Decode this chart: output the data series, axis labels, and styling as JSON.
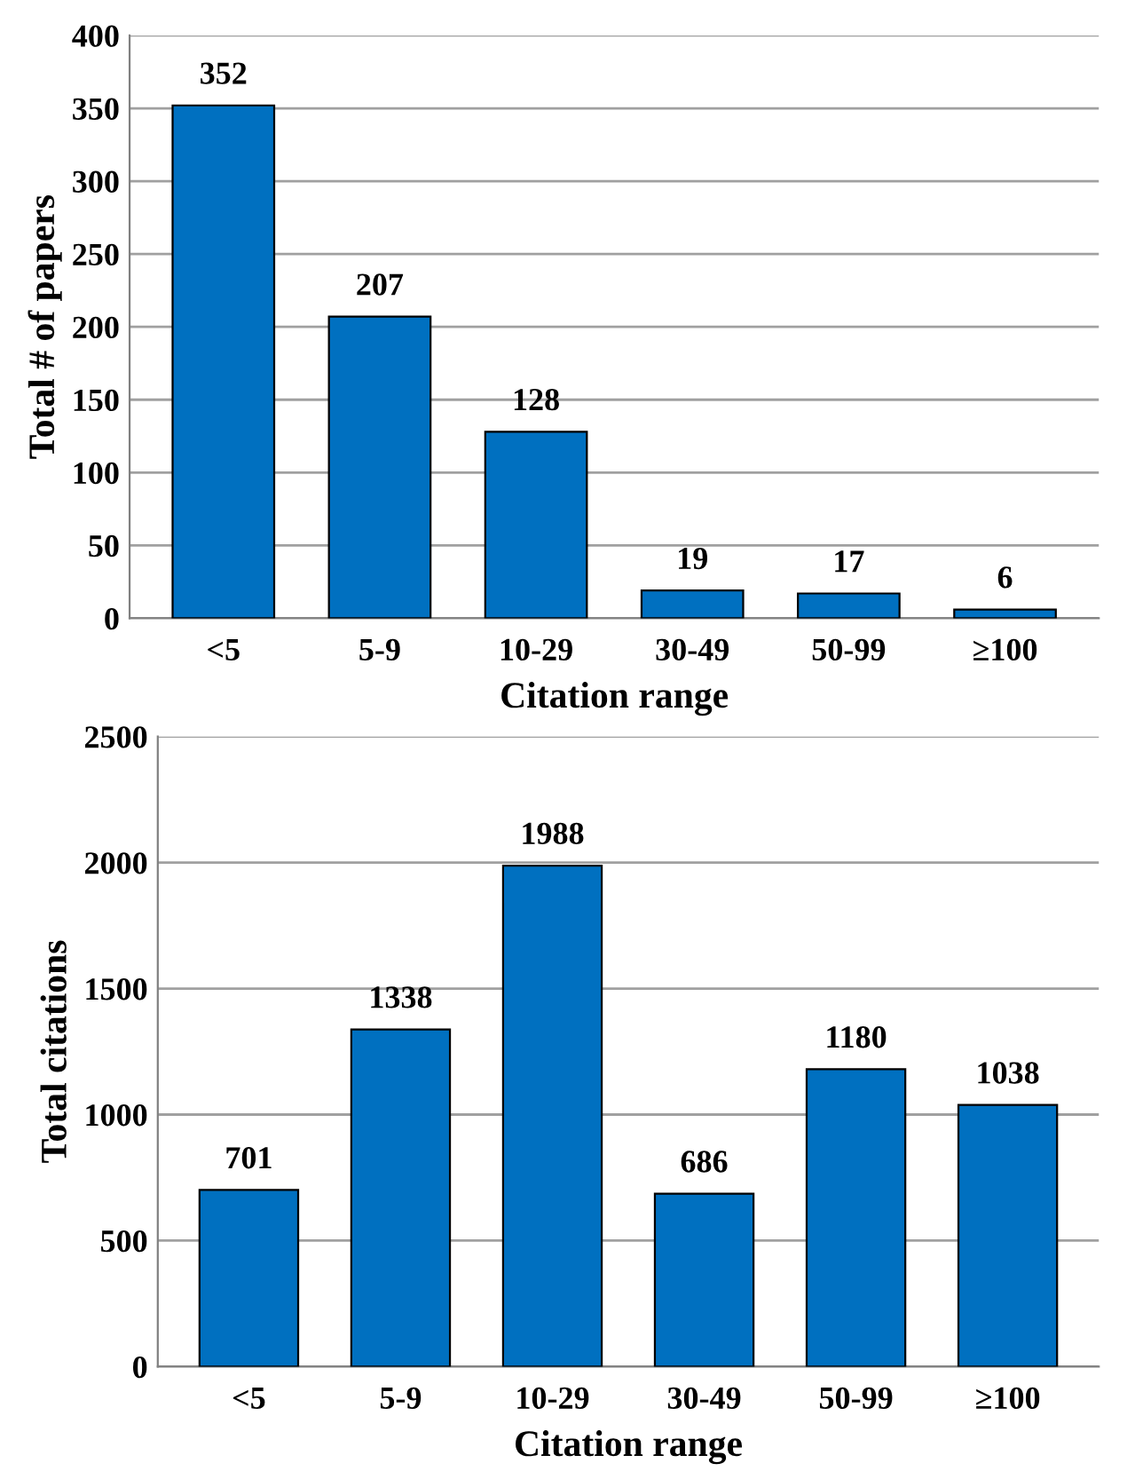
{
  "chart_data": [
    {
      "type": "bar",
      "categories": [
        "<5",
        "5-9",
        "10-29",
        "30-49",
        "50-99",
        "≥100"
      ],
      "values": [
        352,
        207,
        128,
        19,
        17,
        6
      ],
      "color": "#0070c0",
      "xlabel": "Citation range",
      "ylabel": "Total # of papers",
      "ylim": [
        0,
        400
      ],
      "yticks": [
        0,
        50,
        100,
        150,
        200,
        250,
        300,
        350,
        400
      ],
      "grid": "y",
      "data_labels": true
    },
    {
      "type": "bar",
      "categories": [
        "<5",
        "5-9",
        "10-29",
        "30-49",
        "50-99",
        "≥100"
      ],
      "values": [
        701,
        1338,
        1988,
        686,
        1180,
        1038
      ],
      "color": "#0070c0",
      "xlabel": "Citation range",
      "ylabel": "Total citations",
      "ylim": [
        0,
        2500
      ],
      "yticks": [
        0,
        500,
        1000,
        1500,
        2000,
        2500
      ],
      "grid": "y",
      "data_labels": true
    }
  ]
}
